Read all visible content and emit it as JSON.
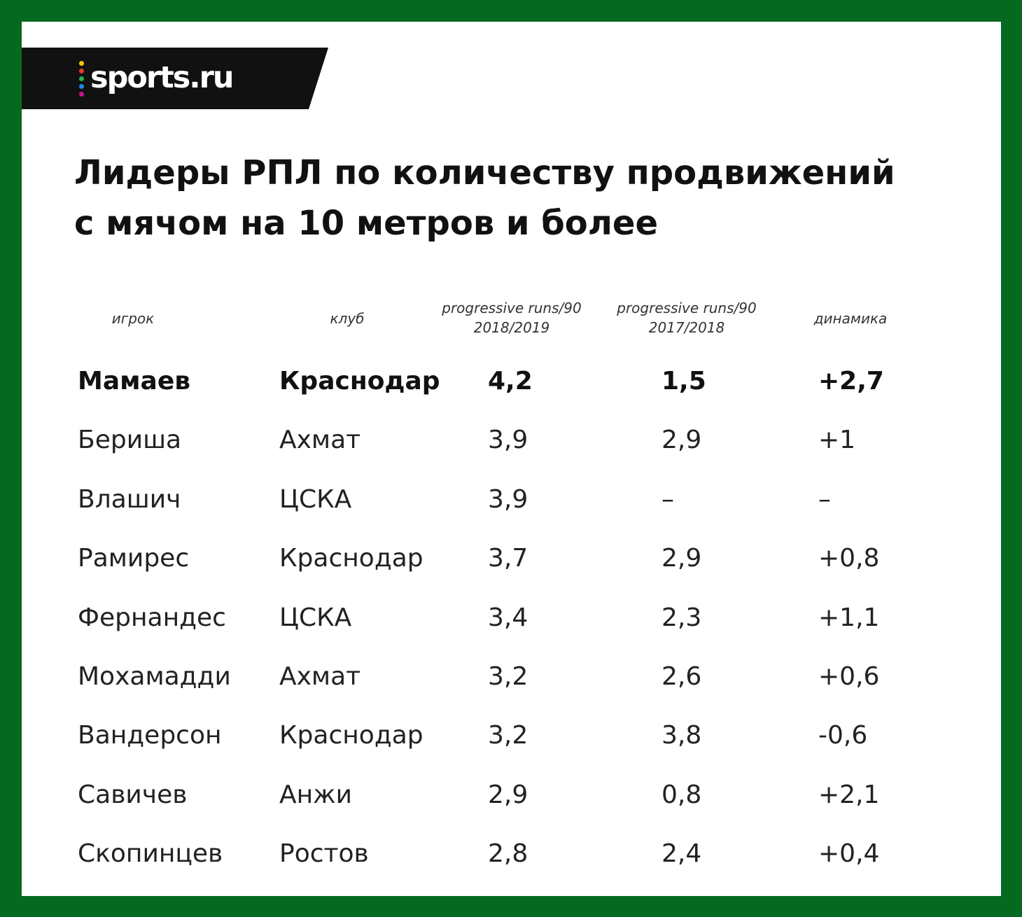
{
  "brand": {
    "name": "sports.ru",
    "dot_colors": [
      "#f5c400",
      "#e8372d",
      "#2bb24c",
      "#1e88e5",
      "#c2188f"
    ],
    "frame_color": "#05691f"
  },
  "title_lines": [
    "Лидеры РПЛ по количеству продвижений",
    "с мячом на 10 метров и более"
  ],
  "headers": {
    "player": "игрок",
    "club": "клуб",
    "season1_line1": "progressive runs/90",
    "season1_line2": "2018/2019",
    "season2_line1": "progressive runs/90",
    "season2_line2": "2017/2018",
    "change": "динамика"
  },
  "chart_data": {
    "type": "table",
    "title": "Лидеры РПЛ по количеству продвижений с мячом на 10 метров и более",
    "columns": [
      "игрок",
      "клуб",
      "progressive runs/90 2018/2019",
      "progressive runs/90 2017/2018",
      "динамика"
    ],
    "rows": [
      [
        "Мамаев",
        "Краснодар",
        "4,2",
        "1,5",
        "+2,7"
      ],
      [
        "Бериша",
        "Ахмат",
        "3,9",
        "2,9",
        "+1"
      ],
      [
        "Влашич",
        "ЦСКА",
        "3,9",
        "–",
        "–"
      ],
      [
        "Рамирес",
        "Краснодар",
        "3,7",
        "2,9",
        "+0,8"
      ],
      [
        "Фернандес",
        "ЦСКА",
        "3,4",
        "2,3",
        "+1,1"
      ],
      [
        "Мохамадди",
        "Ахмат",
        "3,2",
        "2,6",
        "+0,6"
      ],
      [
        "Вандерсон",
        "Краснодар",
        "3,2",
        "3,8",
        "-0,6"
      ],
      [
        "Савичев",
        "Анжи",
        "2,9",
        "0,8",
        "+2,1"
      ],
      [
        "Скопинцев",
        "Ростов",
        "2,8",
        "2,4",
        "+0,4"
      ]
    ],
    "highlight_row": 0
  }
}
